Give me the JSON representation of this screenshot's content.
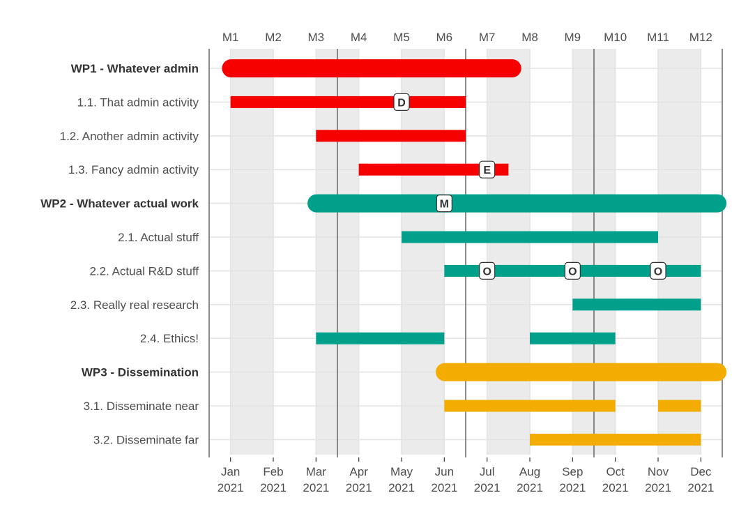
{
  "chart_data": {
    "type": "gantt",
    "title": "",
    "colors": {
      "WP1": "#f60000",
      "WP2": "#00a08a",
      "WP3": "#f2ad00"
    },
    "months_top": [
      "M1",
      "M2",
      "M3",
      "M4",
      "M5",
      "M6",
      "M7",
      "M8",
      "M9",
      "M10",
      "M11",
      "M12"
    ],
    "months_bottom": [
      {
        "month": "Jan",
        "year": "2021"
      },
      {
        "month": "Feb",
        "year": "2021"
      },
      {
        "month": "Mar",
        "year": "2021"
      },
      {
        "month": "Apr",
        "year": "2021"
      },
      {
        "month": "May",
        "year": "2021"
      },
      {
        "month": "Jun",
        "year": "2021"
      },
      {
        "month": "Jul",
        "year": "2021"
      },
      {
        "month": "Aug",
        "year": "2021"
      },
      {
        "month": "Sep",
        "year": "2021"
      },
      {
        "month": "Oct",
        "year": "2021"
      },
      {
        "month": "Nov",
        "year": "2021"
      },
      {
        "month": "Dec",
        "year": "2021"
      }
    ],
    "shaded_month_pairs": [
      [
        1,
        2
      ],
      [
        3,
        4
      ],
      [
        5,
        6
      ],
      [
        7,
        8
      ],
      [
        9,
        10
      ],
      [
        11,
        12
      ]
    ],
    "quarter_boundaries_month": [
      3,
      6,
      9,
      12
    ],
    "x_range_months": [
      0.5,
      12.5
    ],
    "tasks": [
      {
        "label": "WP1 - Whatever admin",
        "wp": "WP1",
        "is_wp": true,
        "start": 0.8,
        "end": 7.8
      },
      {
        "label": "1.1. That admin activity",
        "wp": "WP1",
        "is_wp": false,
        "start": 1.0,
        "end": 6.5
      },
      {
        "label": "1.2. Another admin activity",
        "wp": "WP1",
        "is_wp": false,
        "start": 3.0,
        "end": 6.5
      },
      {
        "label": "1.3. Fancy admin activity",
        "wp": "WP1",
        "is_wp": false,
        "start": 4.0,
        "end": 7.5
      },
      {
        "label": "WP2 - Whatever actual work",
        "wp": "WP2",
        "is_wp": true,
        "start": 2.8,
        "end": 12.6
      },
      {
        "label": "2.1. Actual stuff",
        "wp": "WP2",
        "is_wp": false,
        "start": 5.0,
        "end": 11.0
      },
      {
        "label": "2.2. Actual R&D stuff",
        "wp": "WP2",
        "is_wp": false,
        "start": 6.0,
        "end": 12.0
      },
      {
        "label": "2.3. Really real research",
        "wp": "WP2",
        "is_wp": false,
        "start": 9.0,
        "end": 12.0
      },
      {
        "label": "2.4. Ethics!",
        "wp": "WP2",
        "is_wp": false,
        "segments": [
          [
            3.0,
            6.0
          ],
          [
            8.0,
            10.0
          ]
        ]
      },
      {
        "label": "WP3 - Dissemination",
        "wp": "WP3",
        "is_wp": true,
        "start": 5.8,
        "end": 12.6
      },
      {
        "label": "3.1. Disseminate near",
        "wp": "WP3",
        "is_wp": false,
        "segments": [
          [
            6.0,
            10.0
          ],
          [
            11.0,
            12.0
          ]
        ]
      },
      {
        "label": "3.2. Disseminate far",
        "wp": "WP3",
        "is_wp": false,
        "start": 8.0,
        "end": 12.0
      }
    ],
    "markers": [
      {
        "label": "D",
        "task": 1,
        "month": 5.0
      },
      {
        "label": "E",
        "task": 3,
        "month": 7.0
      },
      {
        "label": "M",
        "task": 4,
        "month": 6.0
      },
      {
        "label": "O",
        "task": 6,
        "month": 7.0
      },
      {
        "label": "O",
        "task": 6,
        "month": 9.0
      },
      {
        "label": "O",
        "task": 6,
        "month": 11.0
      }
    ]
  }
}
